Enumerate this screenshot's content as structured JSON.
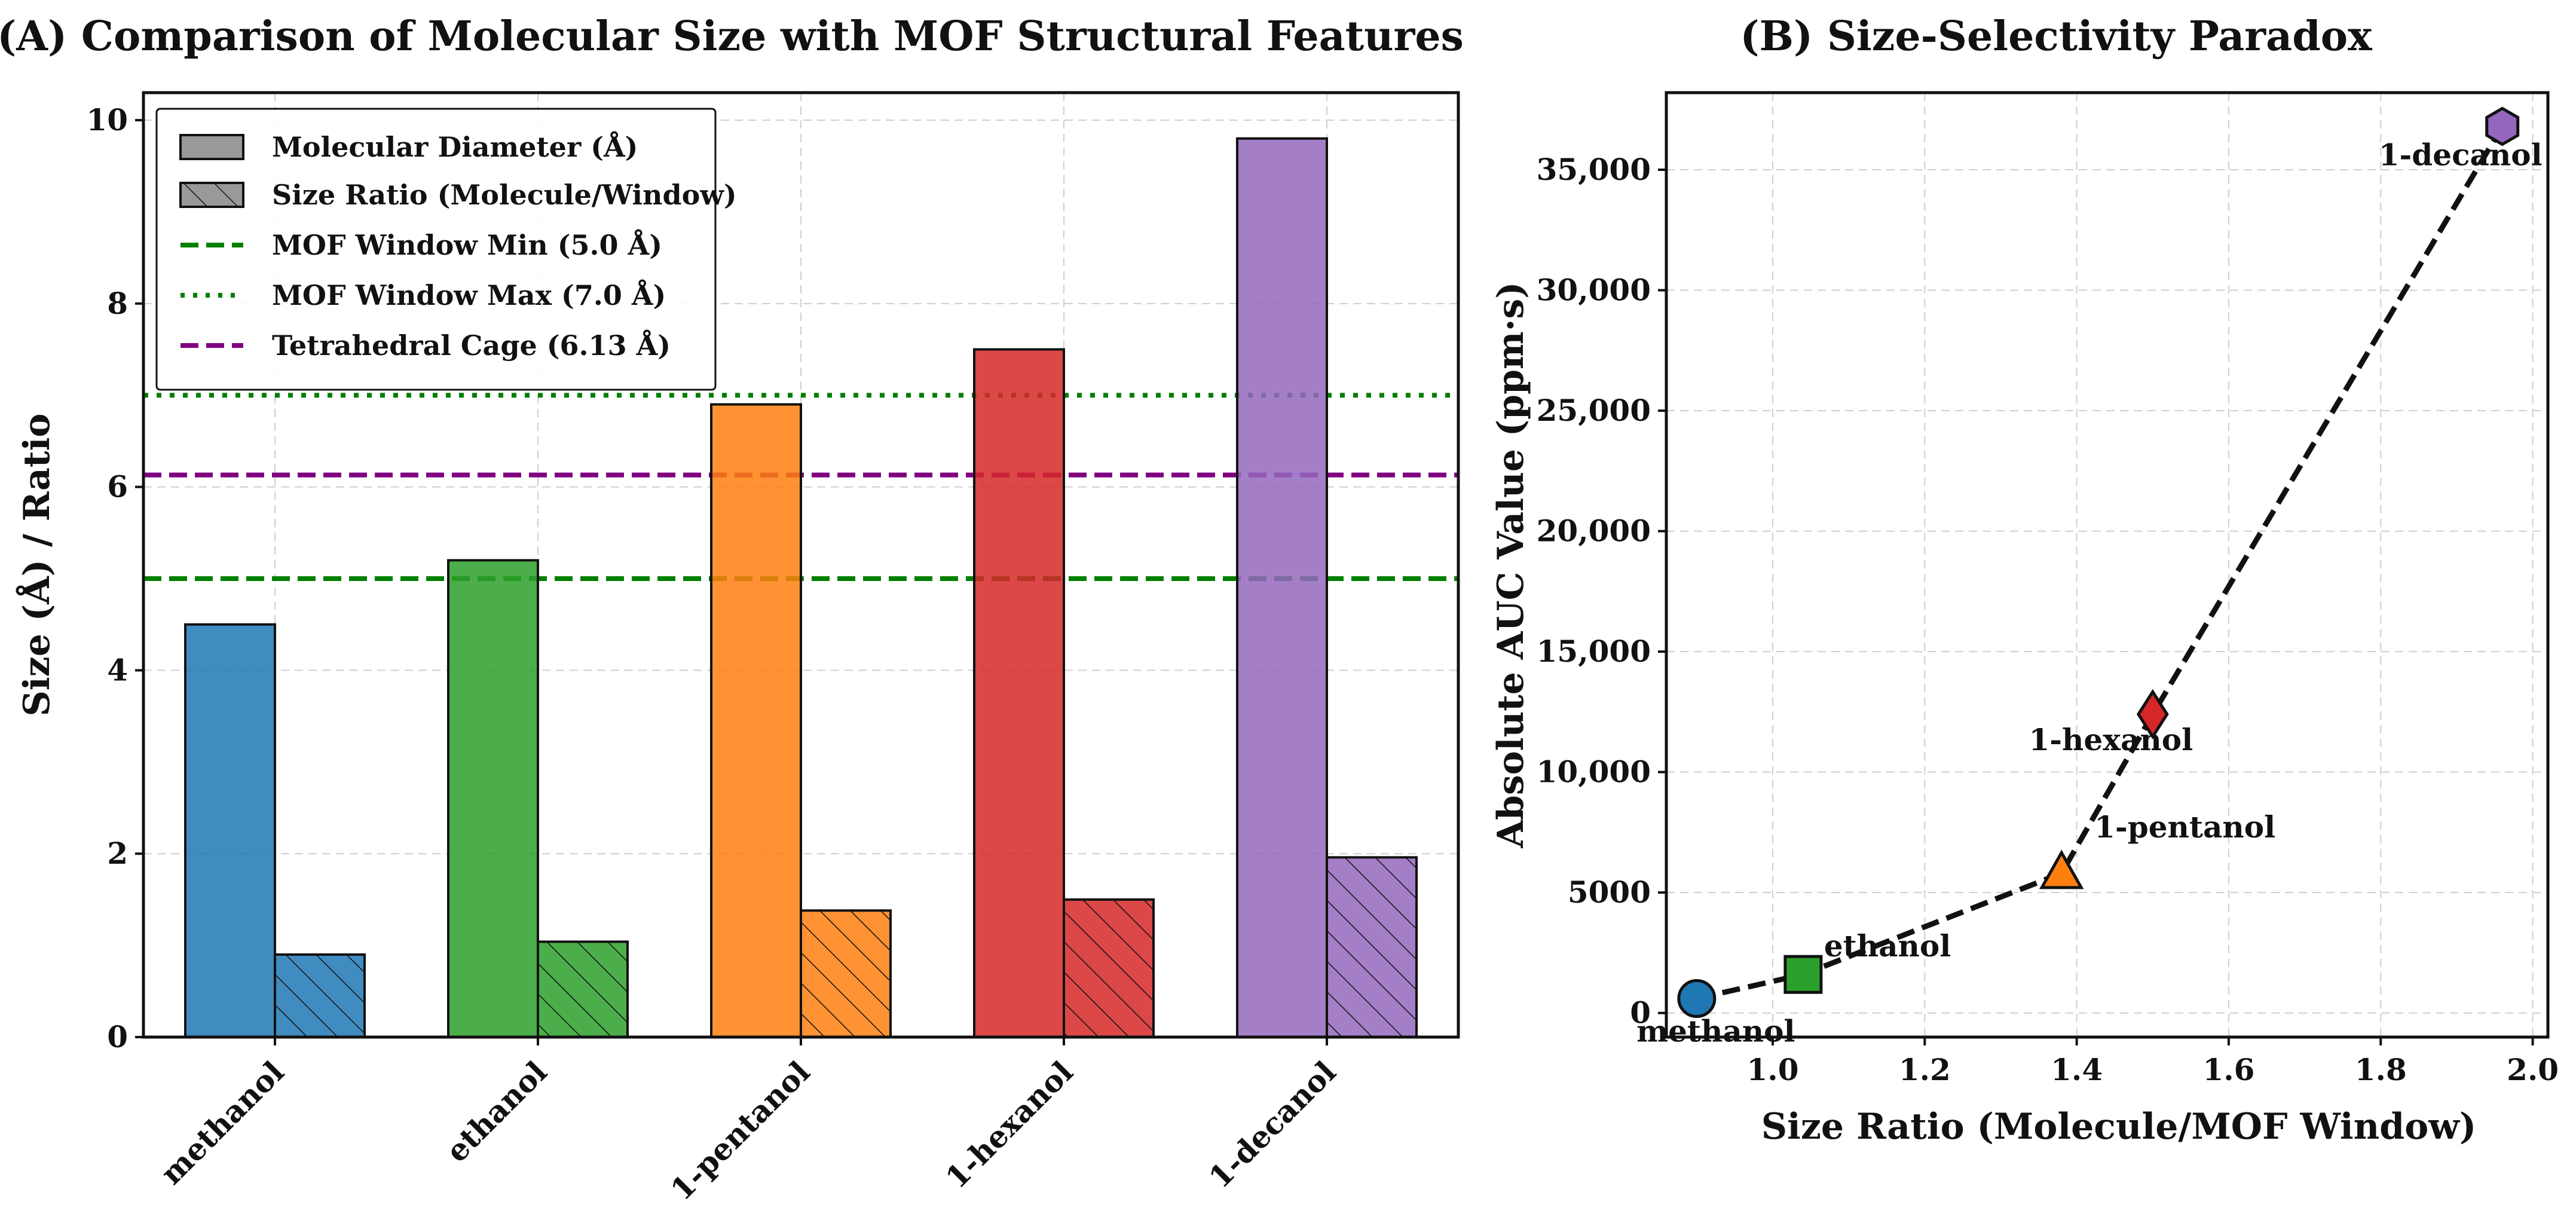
{
  "chart_data": [
    {
      "type": "bar",
      "title": "(A) Comparison of Molecular Size with MOF Structural Features",
      "xlabel": "",
      "ylabel": "Size (Å) / Ratio",
      "ylim": [
        0,
        10.3
      ],
      "yticks": [
        0,
        2,
        4,
        6,
        8,
        10
      ],
      "categories": [
        "methanol",
        "ethanol",
        "1-pentanol",
        "1-hexanol",
        "1-decanol"
      ],
      "colors": [
        "#1f77b4",
        "#2ca02c",
        "#ff7f0e",
        "#d62728",
        "#9467bd"
      ],
      "series": [
        {
          "name": "Molecular Diameter (Å)",
          "values": [
            4.5,
            5.2,
            6.9,
            7.5,
            9.8
          ],
          "hatch": false
        },
        {
          "name": "Size Ratio (Molecule/Window)",
          "values": [
            0.9,
            1.04,
            1.38,
            1.5,
            1.96
          ],
          "hatch": true
        }
      ],
      "reference_lines": [
        {
          "name": "MOF Window Min (5.0 Å)",
          "value": 5.0,
          "color": "#008000",
          "style": "dashed"
        },
        {
          "name": "MOF Window Max (7.0 Å)",
          "value": 7.0,
          "color": "#008000",
          "style": "dotted"
        },
        {
          "name": "Tetrahedral Cage (6.13 Å)",
          "value": 6.13,
          "color": "#800080",
          "style": "dashed"
        }
      ],
      "legend_position": "top-left",
      "grid": true
    },
    {
      "type": "scatter",
      "title": "(B) Size-Selectivity Paradox",
      "xlabel": "Size Ratio (Molecule/MOF Window)",
      "ylabel": "Absolute AUC Value (ppm·s)",
      "xlim": [
        0.86,
        2.02
      ],
      "ylim": [
        -1000,
        38200
      ],
      "xticks": [
        1.0,
        1.2,
        1.4,
        1.6,
        1.8,
        2.0
      ],
      "xtick_labels": [
        "1.0",
        "1.2",
        "1.4",
        "1.6",
        "1.8",
        "2.0"
      ],
      "yticks": [
        0,
        5000,
        10000,
        15000,
        20000,
        25000,
        30000,
        35000
      ],
      "ytick_labels": [
        "0",
        "5000",
        "10,000",
        "15,000",
        "20,000",
        "25,000",
        "30,000",
        "35,000"
      ],
      "points": [
        {
          "label": "methanol",
          "x": 0.9,
          "y": 600,
          "marker": "circle",
          "color": "#1f77b4"
        },
        {
          "label": "ethanol",
          "x": 1.04,
          "y": 1600,
          "marker": "square",
          "color": "#2ca02c"
        },
        {
          "label": "1-pentanol",
          "x": 1.38,
          "y": 5800,
          "marker": "triangle",
          "color": "#ff7f0e"
        },
        {
          "label": "1-hexanol",
          "x": 1.5,
          "y": 12400,
          "marker": "diamond",
          "color": "#d62728"
        },
        {
          "label": "1-decanol",
          "x": 1.96,
          "y": 36800,
          "marker": "hexagon",
          "color": "#9467bd"
        }
      ],
      "line_style": "dashed",
      "grid": true
    }
  ]
}
